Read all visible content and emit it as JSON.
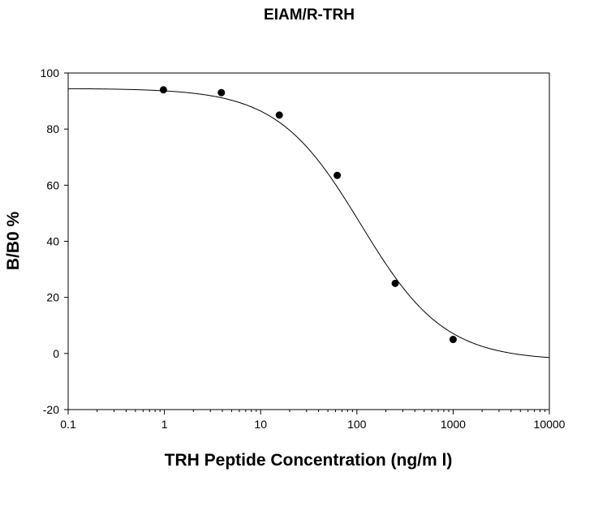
{
  "chart_data": {
    "type": "scatter",
    "title": "EIAM/R-TRH",
    "xlabel": "TRH Peptide Concentration (ng/m l)",
    "ylabel": "B/B0 %",
    "xscale": "log",
    "xlim": [
      0.1,
      10000
    ],
    "ylim": [
      -20,
      100
    ],
    "x_ticks": [
      0.1,
      1,
      10,
      100,
      1000,
      10000
    ],
    "x_tick_labels": [
      "0.1",
      "1",
      "10",
      "100",
      "1000",
      "10000"
    ],
    "y_ticks": [
      -20,
      0,
      20,
      40,
      60,
      80,
      100
    ],
    "y_tick_labels": [
      "-20",
      "0",
      "20",
      "40",
      "60",
      "80",
      "100"
    ],
    "grid": false,
    "legend": "none",
    "series": [
      {
        "x": [
          0.977,
          3.906,
          15.625,
          62.5,
          250,
          1000
        ],
        "values": [
          94,
          93,
          85,
          63.5,
          25,
          5
        ]
      }
    ],
    "fit_curve": {
      "model": "four-parameter logistic",
      "top": 94.5,
      "bottom": -2.5,
      "ec50": 110,
      "hill": 1.0
    },
    "colors": {
      "marker": "#000000",
      "line": "#000000",
      "axes": "#000000"
    }
  }
}
